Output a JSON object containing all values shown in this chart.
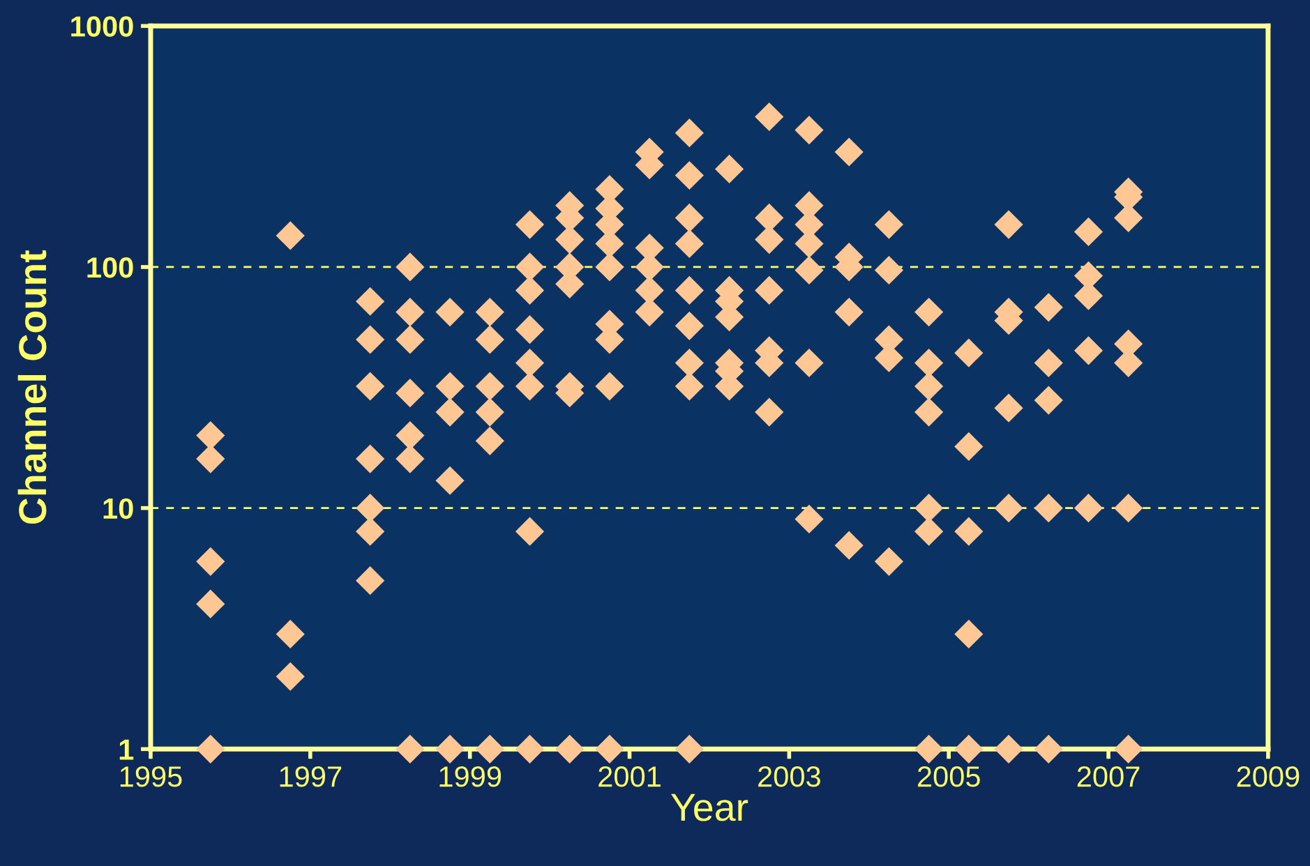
{
  "chart_data": {
    "type": "scatter",
    "xlabel": "Year",
    "ylabel": "Channel Count",
    "log": "y",
    "grid": "y",
    "marker": "diamond",
    "legend": false,
    "xlim": [
      1995,
      2009
    ],
    "xticks": [
      1995,
      1997,
      1999,
      2001,
      2003,
      2005,
      2007,
      2009
    ],
    "ylim": [
      1,
      1000
    ],
    "yticks": [
      1,
      10,
      100,
      1000
    ],
    "series": [
      {
        "color": "#fec794",
        "x": [
          1995.75,
          1995.75,
          1995.75,
          1995.75,
          1995.75,
          1996.75,
          1996.75,
          1996.75,
          1997.75,
          1997.75,
          1997.75,
          1997.75,
          1997.75,
          1997.75,
          1997.75,
          1998.25,
          1998.25,
          1998.25,
          1998.25,
          1998.25,
          1998.25,
          1998.25,
          1998.75,
          1998.75,
          1998.75,
          1998.75,
          1998.75,
          1999.25,
          1999.25,
          1999.25,
          1999.25,
          1999.25,
          1999.25,
          1999.75,
          1999.75,
          1999.75,
          1999.75,
          1999.75,
          1999.75,
          1999.75,
          1999.75,
          2000.25,
          2000.25,
          2000.25,
          2000.25,
          2000.25,
          2000.25,
          2000.25,
          2000.25,
          2000.75,
          2000.75,
          2000.75,
          2000.75,
          2000.75,
          2000.75,
          2000.75,
          2000.75,
          2000.75,
          2001.25,
          2001.25,
          2001.25,
          2001.25,
          2001.25,
          2001.25,
          2001.75,
          2001.75,
          2001.75,
          2001.75,
          2001.75,
          2001.75,
          2001.75,
          2001.75,
          2001.75,
          2002.25,
          2002.25,
          2002.25,
          2002.25,
          2002.25,
          2002.25,
          2002.25,
          2002.75,
          2002.75,
          2002.75,
          2002.75,
          2002.75,
          2002.75,
          2002.75,
          2003.25,
          2003.25,
          2003.25,
          2003.25,
          2003.25,
          2003.25,
          2003.25,
          2003.75,
          2003.75,
          2003.75,
          2003.75,
          2003.75,
          2004.25,
          2004.25,
          2004.25,
          2004.25,
          2004.25,
          2004.75,
          2004.75,
          2004.75,
          2004.75,
          2004.75,
          2004.75,
          2004.75,
          2005.25,
          2005.25,
          2005.25,
          2005.25,
          2005.25,
          2005.75,
          2005.75,
          2005.75,
          2005.75,
          2005.75,
          2005.75,
          2006.25,
          2006.25,
          2006.25,
          2006.25,
          2006.25,
          2006.75,
          2006.75,
          2006.75,
          2006.75,
          2006.75,
          2007.25,
          2007.25,
          2007.25,
          2007.25,
          2007.25,
          2007.25,
          2007.25
        ],
        "values": [
          20,
          16,
          6,
          4,
          1,
          135,
          3,
          2,
          72,
          50,
          32,
          16,
          10,
          8,
          5,
          100,
          65,
          50,
          30,
          20,
          16,
          1,
          65,
          32,
          25,
          13,
          1,
          65,
          50,
          32,
          25,
          19,
          1,
          150,
          100,
          80,
          55,
          40,
          32,
          8,
          1,
          180,
          160,
          130,
          100,
          85,
          32,
          30,
          1,
          210,
          175,
          150,
          125,
          100,
          58,
          50,
          32,
          1,
          300,
          265,
          120,
          100,
          80,
          65,
          360,
          240,
          160,
          125,
          80,
          57,
          40,
          32,
          1,
          255,
          80,
          72,
          62,
          40,
          37,
          32,
          420,
          160,
          130,
          80,
          45,
          40,
          25,
          370,
          180,
          150,
          125,
          97,
          40,
          9,
          300,
          110,
          100,
          65,
          7,
          150,
          97,
          50,
          42,
          6,
          65,
          40,
          32,
          25,
          10,
          8,
          1,
          44,
          18,
          8,
          3,
          1,
          150,
          65,
          60,
          26,
          10,
          1,
          68,
          40,
          28,
          10,
          1,
          140,
          92,
          76,
          45,
          10,
          205,
          195,
          160,
          48,
          40,
          10,
          1
        ]
      }
    ]
  }
}
